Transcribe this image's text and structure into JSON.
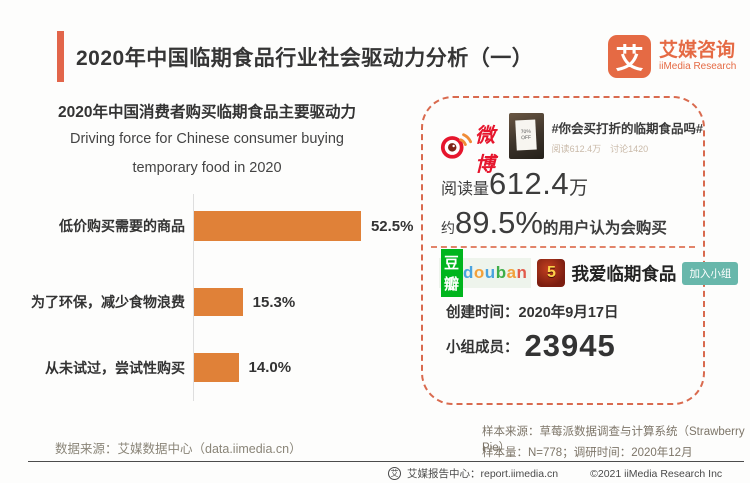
{
  "header": {
    "title": "2020年中国临期食品行业社会驱动力分析（一）",
    "logo": {
      "mark": "艾",
      "name_cn": "艾媒咨询",
      "name_en": "iiMedia Research"
    }
  },
  "chart_data": {
    "type": "bar",
    "orientation": "horizontal",
    "title": "2020年中国消费者购买临期食品主要驱动力",
    "subtitle_line1": "Driving force for Chinese consumer buying",
    "subtitle_line2": "temporary food in 2020",
    "categories": [
      "低价购买需要的商品",
      "为了环保，减少食物浪费",
      "从未试过，尝试性购买"
    ],
    "values": [
      52.5,
      15.3,
      14.0
    ],
    "value_labels": [
      "52.5%",
      "15.3%",
      "14.0%"
    ],
    "xlim": [
      0,
      60
    ],
    "grid": false,
    "legend": false,
    "bar_color": "#e08138"
  },
  "social_panel": {
    "weibo": {
      "logo_name": "weibo",
      "wordmark": "微博",
      "thumb_label": "70% OFF",
      "hashtag": "#你会买打折的临期食品吗#",
      "stats": "阅读612.4万　讨论1420",
      "read_prefix": "阅读量",
      "read_value": "612.4",
      "read_unit": "万",
      "buy_prefix": "约",
      "buy_value": "89.5%",
      "buy_suffix": "的用户认为会购买"
    },
    "douban": {
      "logo_cn": "豆瓣",
      "logo_en": "douban",
      "logo_en_colors": [
        "#4aa3df",
        "#f2a13b",
        "#4aa3df",
        "#3fae49",
        "#f2a13b",
        "#e25a4a"
      ],
      "badge": "5",
      "group_name": "我爱临期食品",
      "join_button": "加入小组",
      "created_line": "创建时间：2020年9月17日",
      "members_label": "小组成员：",
      "members_value": "23945"
    }
  },
  "footer": {
    "data_source": "数据来源：艾媒数据中心（data.iimedia.cn）",
    "sample_source": "样本来源：草莓派数据调查与计算系统（Strawberry Pie）",
    "sample_info": "样本量：N=778；调研时间：2020年12月",
    "report_center": "艾媒报告中心：report.iimedia.cn",
    "report_logo_mark": "艾",
    "copyright": "©2021  iiMedia Research  Inc"
  },
  "colors": {
    "accent_orange": "#e2654a",
    "bar_orange": "#e08138",
    "dashed_border": "#d96a4e",
    "weibo_red": "#e6162d",
    "douban_green": "#00b51d",
    "join_teal": "#68b7ab"
  }
}
